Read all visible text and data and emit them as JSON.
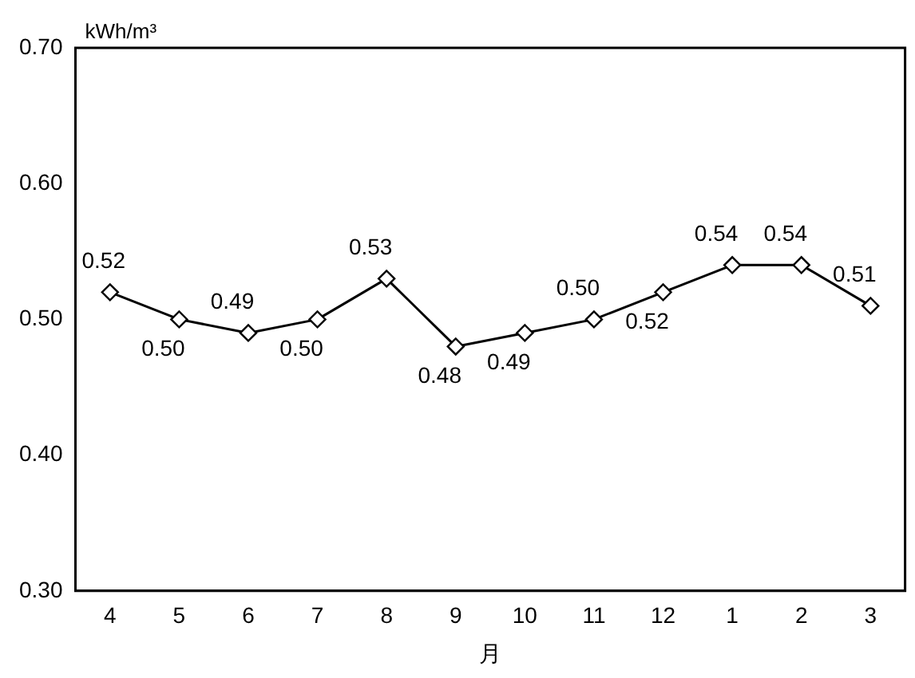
{
  "chart_data": {
    "type": "line",
    "ylabel": "kWh/m³",
    "xlabel": "月",
    "categories": [
      "4",
      "5",
      "6",
      "7",
      "8",
      "9",
      "10",
      "11",
      "12",
      "1",
      "2",
      "3"
    ],
    "series": [
      {
        "color": "#000000",
        "values": [
          0.52,
          0.5,
          0.49,
          0.5,
          0.53,
          0.48,
          0.49,
          0.5,
          0.52,
          0.54,
          0.54,
          0.51
        ],
        "value_labels": [
          "0.52",
          "0.50",
          "0.49",
          "0.50",
          "0.53",
          "0.48",
          "0.49",
          "0.50",
          "0.52",
          "0.54",
          "0.54",
          "0.51"
        ]
      }
    ],
    "ylim": [
      0.3,
      0.7
    ],
    "yticks": [
      {
        "value": 0.3,
        "label": "0.30"
      },
      {
        "value": 0.4,
        "label": "0.40"
      },
      {
        "value": 0.5,
        "label": "0.50"
      },
      {
        "value": 0.6,
        "label": "0.60"
      },
      {
        "value": 0.7,
        "label": "0.70"
      }
    ],
    "grid": false,
    "legend": false,
    "marker": "diamond",
    "line_style": "solid"
  }
}
